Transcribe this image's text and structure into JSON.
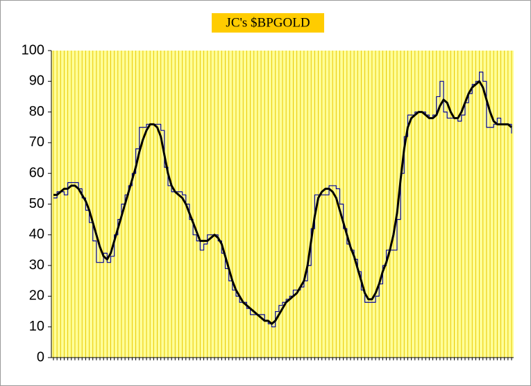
{
  "chart_data": {
    "type": "line",
    "title": "JC's $BPGOLD",
    "ylim": [
      0,
      100
    ],
    "yticks": [
      0,
      10,
      20,
      30,
      40,
      50,
      60,
      70,
      80,
      90,
      100
    ],
    "background": "#ffff99",
    "grid_color": "#e8c800",
    "vertical_grid": true,
    "series": [
      {
        "color": "#000099",
        "width": 1.2,
        "step": true,
        "values": [
          52,
          54,
          54,
          53,
          57,
          57,
          57,
          55,
          52,
          48,
          44,
          38,
          31,
          31,
          34,
          31,
          33,
          40,
          45,
          50,
          53,
          56,
          60,
          68,
          75,
          75,
          76,
          76,
          76,
          76,
          74,
          62,
          56,
          54,
          54,
          54,
          53,
          50,
          45,
          40,
          38,
          35,
          37,
          40,
          40,
          40,
          38,
          34,
          29,
          25,
          22,
          20,
          18,
          18,
          16,
          14,
          14,
          14,
          14,
          12,
          11,
          10,
          15,
          17,
          18,
          19,
          20,
          22,
          22,
          23,
          25,
          30,
          42,
          53,
          53,
          53,
          53,
          56,
          56,
          55,
          50,
          42,
          37,
          35,
          32,
          28,
          22,
          18,
          18,
          18,
          20,
          24,
          30,
          35,
          35,
          35,
          45,
          60,
          72,
          79,
          79,
          80,
          80,
          80,
          79,
          78,
          79,
          85,
          90,
          80,
          78,
          78,
          78,
          77,
          79,
          83,
          86,
          89,
          90,
          93,
          90,
          75,
          75,
          76,
          78,
          76,
          76,
          76,
          73
        ]
      },
      {
        "color": "#000000",
        "width": 3,
        "step": false,
        "values": [
          53,
          53,
          54,
          55,
          55,
          56,
          56,
          55,
          53,
          51,
          48,
          44,
          40,
          36,
          33,
          32,
          34,
          38,
          42,
          46,
          50,
          54,
          58,
          62,
          67,
          71,
          74,
          76,
          76,
          75,
          72,
          66,
          60,
          56,
          54,
          53,
          52,
          50,
          47,
          44,
          41,
          38,
          38,
          38,
          39,
          40,
          39,
          37,
          33,
          29,
          25,
          22,
          20,
          18,
          17,
          16,
          15,
          14,
          13,
          12,
          12,
          11,
          12,
          14,
          16,
          18,
          19,
          20,
          21,
          23,
          25,
          30,
          38,
          46,
          52,
          54,
          55,
          55,
          54,
          52,
          48,
          44,
          40,
          36,
          33,
          29,
          25,
          21,
          19,
          19,
          21,
          24,
          28,
          31,
          35,
          40,
          47,
          58,
          68,
          75,
          78,
          79,
          80,
          80,
          79,
          78,
          78,
          79,
          82,
          84,
          83,
          80,
          78,
          78,
          80,
          83,
          86,
          88,
          89,
          90,
          88,
          84,
          80,
          77,
          76,
          76,
          76,
          76,
          75
        ]
      }
    ]
  }
}
